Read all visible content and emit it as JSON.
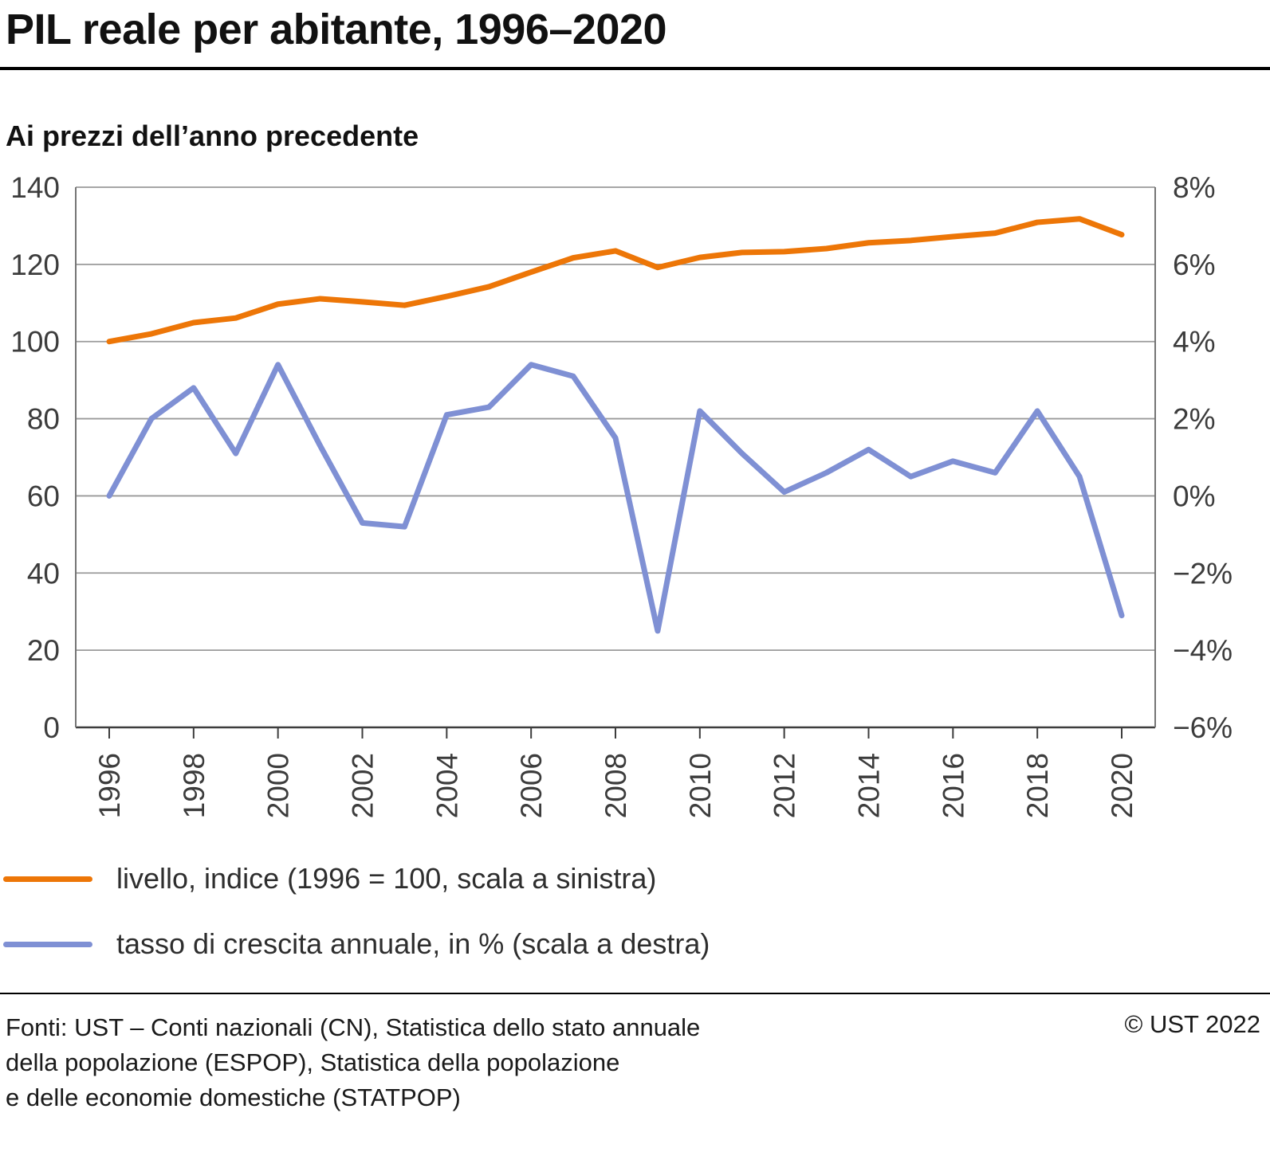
{
  "page": {
    "title": "PIL reale per abitante, 1996–2020",
    "subtitle": "Ai prezzi dell’anno precedente"
  },
  "colors": {
    "level_line": "#ed7607",
    "growth_line": "#7f90d4",
    "gridline": "#9a9a9a",
    "axis_frame": "#757575",
    "baseline": "#3d3d3d",
    "tick_text": "#3c3c3c"
  },
  "legend": [
    {
      "label": "livello, indice (1996 = 100, scala a sinistra)",
      "color": "#ed7607"
    },
    {
      "label": "tasso di crescita annuale, in % (scala a destra)",
      "color": "#7f90d4"
    }
  ],
  "footer": {
    "sources_lines": [
      "Fonti: UST – Conti nazionali (CN), Statistica dello stato annuale",
      "della popolazione (ESPOP), Statistica della popolazione",
      "e delle economie domestiche (STATPOP)"
    ],
    "copyright": "© UST 2022"
  },
  "chart_data": {
    "type": "line",
    "title": "PIL reale per abitante, 1996–2020",
    "subtitle": "Ai prezzi dell’anno precedente",
    "grid": true,
    "legend_position": "bottom-left",
    "x": [
      1996,
      1997,
      1998,
      1999,
      2000,
      2001,
      2002,
      2003,
      2004,
      2005,
      2006,
      2007,
      2008,
      2009,
      2010,
      2011,
      2012,
      2013,
      2014,
      2015,
      2016,
      2017,
      2018,
      2019,
      2020
    ],
    "x_tick_labels": [
      "1996",
      "1998",
      "2000",
      "2002",
      "2004",
      "2006",
      "2008",
      "2010",
      "2012",
      "2014",
      "2016",
      "2018",
      "2020"
    ],
    "left_axis": {
      "label": "livello, indice (1996 = 100)",
      "min": 0,
      "max": 140,
      "step": 20,
      "tick_labels": [
        "0",
        "20",
        "40",
        "60",
        "80",
        "100",
        "120",
        "140"
      ]
    },
    "right_axis": {
      "label": "tasso di crescita annuale, in %",
      "min": -6,
      "max": 8,
      "step": 2,
      "tick_labels": [
        "−6%",
        "−4%",
        "−2%",
        "0%",
        "2%",
        "4%",
        "6%",
        "8%"
      ]
    },
    "series": [
      {
        "name": "livello, indice (1996 = 100, scala a sinistra)",
        "axis": "left",
        "color": "#ed7607",
        "values": [
          100,
          102,
          104.9,
          106.1,
          109.7,
          111.1,
          110.3,
          109.4,
          111.7,
          114.2,
          118.0,
          121.7,
          123.5,
          119.2,
          121.8,
          123.1,
          123.3,
          124.1,
          125.6,
          126.2,
          127.2,
          128.1,
          130.9,
          131.8,
          127.7
        ]
      },
      {
        "name": "tasso di crescita annuale, in % (scala a destra)",
        "axis": "right",
        "color": "#7f90d4",
        "values": [
          0.0,
          2.0,
          2.8,
          1.1,
          3.4,
          1.3,
          -0.7,
          -0.8,
          2.1,
          2.3,
          3.4,
          3.1,
          1.5,
          -3.5,
          2.2,
          1.1,
          0.1,
          0.6,
          1.2,
          0.5,
          0.9,
          0.6,
          2.2,
          0.5,
          -3.1
        ]
      }
    ]
  }
}
